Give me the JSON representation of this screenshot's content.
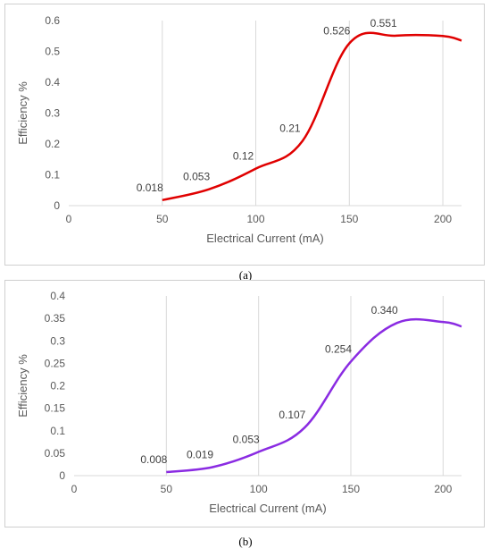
{
  "chart_data": [
    {
      "type": "line",
      "xlabel": "Electrical Current (mA)",
      "ylabel": "Efficiency %",
      "xlim": [
        0,
        210
      ],
      "ylim": [
        0,
        0.6
      ],
      "xticks": [
        0,
        50,
        100,
        150,
        200
      ],
      "yticks": [
        0,
        0.1,
        0.2,
        0.3,
        0.4,
        0.5,
        0.6
      ],
      "ytick_labels": [
        "0",
        "0.1",
        "0.2",
        "0.3",
        "0.4",
        "0.5",
        "0.6"
      ],
      "grid": "vertical",
      "color": "#e00000",
      "series": [
        {
          "x": [
            50,
            75,
            100,
            125,
            150,
            175,
            200,
            210
          ],
          "y": [
            0.018,
            0.053,
            0.12,
            0.21,
            0.526,
            0.551,
            0.55,
            0.535
          ],
          "labels": [
            "0.018",
            "0.053",
            "0.12",
            "0.21",
            "0.526",
            "0.551",
            "",
            ""
          ]
        }
      ]
    },
    {
      "type": "line",
      "xlabel": "Electrical Current (mA)",
      "ylabel": "Efficiency %",
      "xlim": [
        0,
        210
      ],
      "ylim": [
        0,
        0.4
      ],
      "xticks": [
        0,
        50,
        100,
        150,
        200
      ],
      "yticks": [
        0,
        0.05,
        0.1,
        0.15,
        0.2,
        0.25,
        0.3,
        0.35,
        0.4
      ],
      "ytick_labels": [
        "0",
        "0.05",
        "0.1",
        "0.15",
        "0.2",
        "0.25",
        "0.3",
        "0.35",
        "0.4"
      ],
      "grid": "vertical",
      "color": "#8a2be2",
      "series": [
        {
          "x": [
            50,
            75,
            100,
            125,
            150,
            175,
            200,
            210
          ],
          "y": [
            0.008,
            0.019,
            0.053,
            0.107,
            0.254,
            0.34,
            0.342,
            0.332
          ],
          "labels": [
            "0.008",
            "0.019",
            "0.053",
            "0.107",
            "0.254",
            "0.340",
            "",
            ""
          ]
        }
      ]
    }
  ],
  "captions": {
    "a": "(a)",
    "b": "(b)"
  }
}
